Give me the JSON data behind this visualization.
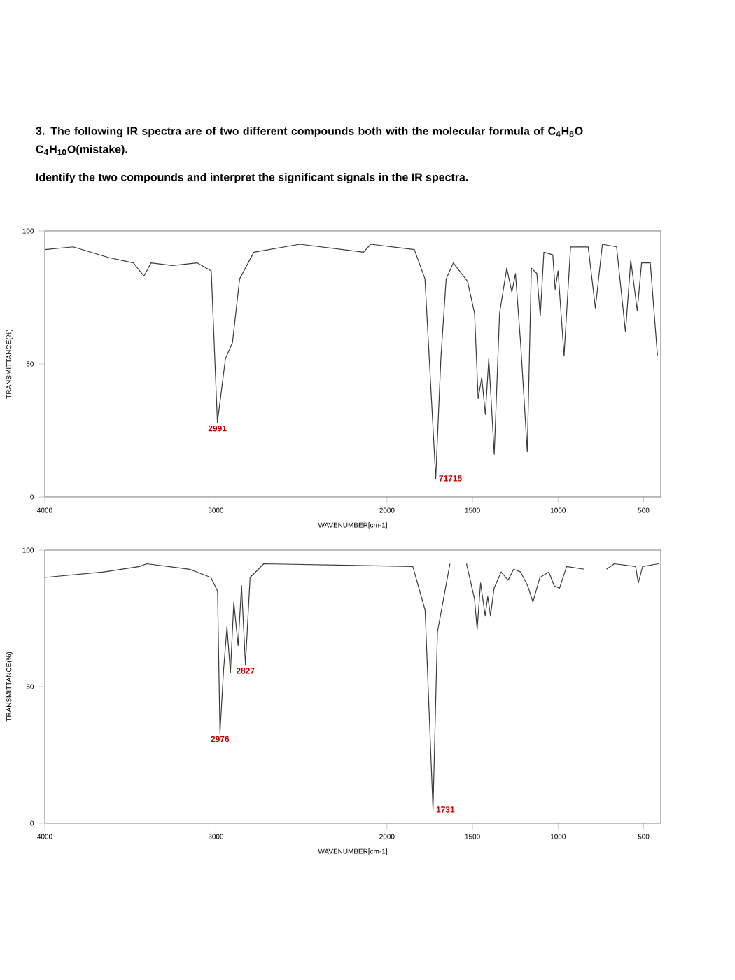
{
  "chart_data": [
    {
      "type": "line",
      "title": "3. The following IR spectra are of two different compounds both with the molecular formula of C$_{4}$H$_{8}$O",
      "subtitle": "C$_{4}$H$_{10}$O(mistake).",
      "xlabel": "WAVENUMBER[cm-1]",
      "ylabel": "TRANSMITTANCE(%)",
      "annotations": [
        "Identify the two compounds and interpret the significant signals in the IR spectra.",
        {
          "text": "2991",
          "x": 2991,
          "y": 28
        },
        {
          "text": "71715",
          "x": 1715,
          "y": 7
        }
      ],
      "xlim": [
        4000,
        400
      ],
      "xticks": [
        4000,
        3000,
        2000,
        1500,
        1000,
        500
      ],
      "ylim": [
        0,
        100
      ],
      "yticks": [
        0,
        50,
        100
      ],
      "series": [
        {
          "color": "#3a3a3a",
          "x": [
            4000,
            3834,
            3627,
            3482,
            3420,
            3379,
            3255,
            3110,
            3027,
            2991,
            2944,
            2903,
            2861,
            2778,
            2509,
            2137,
            2095,
            1840,
            1778,
            1715,
            1685,
            1654,
            1612,
            1529,
            1488,
            1467,
            1446,
            1425,
            1405,
            1373,
            1342,
            1300,
            1270,
            1249,
            1218,
            1180,
            1156,
            1124,
            1104,
            1083,
            1031,
            1017,
            1000,
            965,
            927,
            824,
            782,
            741,
            658,
            606,
            575,
            537,
            512,
            461,
            419
          ],
          "values": [
            93,
            94,
            90,
            88,
            83,
            88,
            87,
            88,
            85,
            28,
            52,
            58,
            82,
            92,
            95,
            92,
            95,
            93,
            82,
            7,
            52,
            82,
            88,
            81,
            69,
            37,
            45,
            31,
            52,
            16,
            69,
            86,
            77,
            84,
            57,
            17,
            86,
            84,
            68,
            92,
            91,
            78,
            85,
            53,
            94,
            94,
            71,
            95,
            94,
            62,
            89,
            70,
            88,
            88,
            53
          ]
        }
      ]
    },
    {
      "type": "line",
      "xlabel": "WAVENUMBER[cm-1]",
      "ylabel": "TRANSMITTANCE(%)",
      "annotations": [
        {
          "text": "2976",
          "x": 2976,
          "y": 33
        },
        {
          "text": "2827",
          "x": 2827,
          "y": 58
        },
        {
          "text": "1731",
          "x": 1731,
          "y": 5
        }
      ],
      "xlim": [
        4000,
        400
      ],
      "xticks": [
        4000,
        3000,
        2000,
        1500,
        1000,
        500
      ],
      "ylim": [
        0,
        100
      ],
      "yticks": [
        0,
        50,
        100
      ],
      "series": [
        {
          "color": "#3a3a3a",
          "x": [
            4000,
            3654,
            3446,
            3404,
            3154,
            3029,
            2990,
            2976,
            2955,
            2935,
            2915,
            2895,
            2870,
            2850,
            2827,
            2800,
            2720,
            1849,
            1777,
            1731,
            1705,
            1632,
            1580,
            1535,
            1488,
            1473,
            1453,
            1426,
            1411,
            1395,
            1374,
            1333,
            1292,
            1260,
            1219,
            1178,
            1147,
            1106,
            1054,
            1023,
            992,
            950,
            847,
            780,
            717,
            671,
            547,
            531,
            506,
            413
          ],
          "values": [
            90,
            92,
            94,
            95,
            93,
            90,
            85,
            33,
            56,
            72,
            55,
            81,
            65,
            87,
            58,
            90,
            95,
            94,
            78,
            5,
            70,
            95,
            null,
            95,
            82,
            71,
            88,
            76,
            83,
            76,
            86,
            92,
            89,
            93,
            92,
            87,
            81,
            90,
            92,
            87,
            86,
            94,
            93,
            null,
            93,
            95,
            94,
            88,
            94,
            95
          ]
        }
      ]
    }
  ]
}
